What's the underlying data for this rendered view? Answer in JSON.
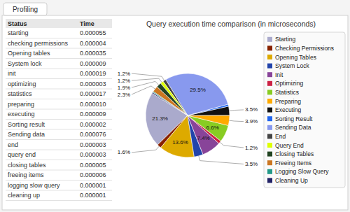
{
  "chart_data": {
    "type": "pie",
    "title": "Query execution time comparison (in microseconds)",
    "tab_label": "Profiling",
    "table": {
      "columns": [
        "Status",
        "Time"
      ],
      "rows": [
        [
          "starting",
          "0.000055"
        ],
        [
          "checking permissions",
          "0.000004"
        ],
        [
          "Opening tables",
          "0.000035"
        ],
        [
          "System lock",
          "0.000009"
        ],
        [
          "init",
          "0.000019"
        ],
        [
          "optimizing",
          "0.000003"
        ],
        [
          "statistics",
          "0.000017"
        ],
        [
          "preparing",
          "0.000010"
        ],
        [
          "executing",
          "0.000009"
        ],
        [
          "Sorting result",
          "0.000002"
        ],
        [
          "Sending data",
          "0.000076"
        ],
        [
          "end",
          "0.000003"
        ],
        [
          "query end",
          "0.000003"
        ],
        [
          "closing tables",
          "0.000005"
        ],
        [
          "freeing items",
          "0.000006"
        ],
        [
          "logging slow query",
          "0.000001"
        ],
        [
          "cleaning up",
          "0.000001"
        ]
      ]
    },
    "categories": [
      "Starting",
      "Checking Permissions",
      "Opening Tables",
      "System Lock",
      "Init",
      "Optimizing",
      "Statistics",
      "Preparing",
      "Executing",
      "Sorting Result",
      "Sending Data",
      "End",
      "Query End",
      "Closing Tables",
      "Freeing Items",
      "Logging Slow Query",
      "Cleaning Up"
    ],
    "values": [
      21.3,
      1.6,
      13.6,
      3.5,
      7.4,
      1.2,
      6.6,
      3.9,
      3.5,
      0.8,
      29.5,
      1.2,
      1.2,
      1.9,
      2.3,
      0.4,
      0.4
    ],
    "value_labels": [
      "21.3%",
      "1.6%",
      "13.6%",
      "3.5%",
      "7.4%",
      "1.2%",
      "6.6%",
      "3.9%",
      "3.5%",
      null,
      "29.5%",
      "1.2%",
      "1.2%",
      "1.9%",
      "2.3%",
      null,
      null
    ],
    "colors": [
      "#aaaacc",
      "#882200",
      "#ddaa00",
      "#2244aa",
      "#884499",
      "#cc2244",
      "#88cc22",
      "#ffaa00",
      "#111111",
      "#2266ee",
      "#8899ee",
      "#444444",
      "#ddff00",
      "#224422",
      "#cc7722",
      "#229988",
      "#222266"
    ],
    "data_labels": true,
    "legend": "right"
  }
}
